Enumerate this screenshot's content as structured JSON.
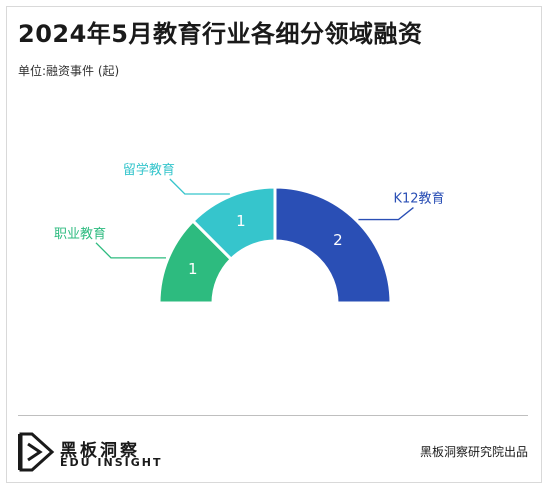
{
  "title": "2024年5月教育行业各细分领域融资",
  "unit": "单位:融资事件 (起)",
  "brand": {
    "name_cn": "黑板洞察",
    "name_en": "EDU INSIGHT"
  },
  "source": "黑板洞察研究院出品",
  "colors": {
    "vocational": "#2dbb7f",
    "study_abroad": "#36c5cc",
    "k12": "#2a4fb5"
  },
  "chart_data": {
    "type": "pie",
    "style": "half-donut",
    "categories": [
      "职业教育",
      "留学教育",
      "K12教育"
    ],
    "values": [
      1,
      1,
      2
    ],
    "colors": [
      "#2dbb7f",
      "#36c5cc",
      "#2a4fb5"
    ],
    "label_colors": [
      "#2dbb7f",
      "#36c5cc",
      "#2a4fb5"
    ]
  }
}
